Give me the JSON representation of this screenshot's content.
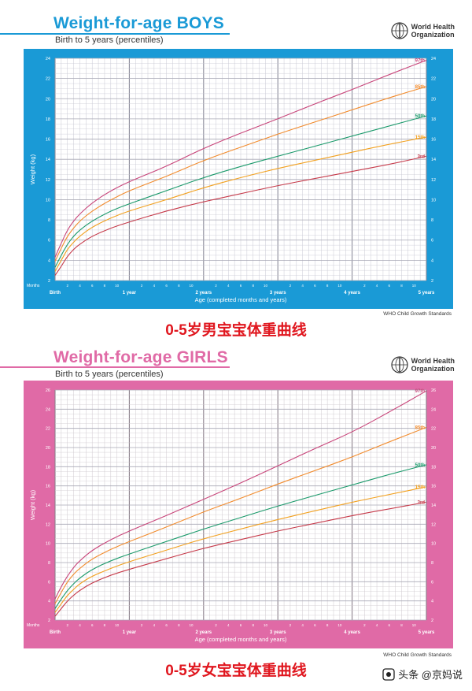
{
  "boys": {
    "title": "Weight-for-age BOYS",
    "subtitle": "Birth to 5 years (percentiles)",
    "org": [
      "World Health",
      "Organization"
    ],
    "footer": "WHO Child Growth Standards",
    "caption": "0-5岁男宝宝体重曲线"
  },
  "girls": {
    "title": "Weight-for-age GIRLS",
    "subtitle": "Birth to 5 years (percentiles)",
    "org": [
      "World Health",
      "Organization"
    ],
    "footer": "WHO Child Growth Standards",
    "caption": "0-5岁女宝宝体重曲线"
  },
  "watermark": "头条 @京妈说",
  "chart_data": [
    {
      "type": "line",
      "panel": "boys",
      "ylabel": "Weight (kg)",
      "xlabel": "Age (completed months and years)",
      "x_unit_label": "Months",
      "ylim": [
        2,
        24
      ],
      "y_ticks": [
        2,
        4,
        6,
        8,
        10,
        12,
        14,
        16,
        18,
        20,
        22,
        24
      ],
      "xlim": [
        0,
        60
      ],
      "x_year_ticks": [
        {
          "m": 0,
          "label": "Birth"
        },
        {
          "m": 12,
          "label": "1 year"
        },
        {
          "m": 24,
          "label": "2 years"
        },
        {
          "m": 36,
          "label": "3 years"
        },
        {
          "m": 48,
          "label": "4 years"
        },
        {
          "m": 60,
          "label": "5 years"
        }
      ],
      "x_month_ticks": [
        2,
        4,
        6,
        8,
        10
      ],
      "grid": true,
      "colors": {
        "background": "#1a9ad6",
        "plot": "#ffffff",
        "grid": "#c9c9d4",
        "grid_major": "#8a8a99"
      },
      "x": [
        0,
        1,
        2,
        3,
        4,
        6,
        9,
        12,
        18,
        24,
        30,
        36,
        42,
        48,
        54,
        60
      ],
      "series": [
        {
          "name": "97th",
          "color": "#c8457a",
          "values": [
            4.3,
            5.7,
            7.0,
            7.9,
            8.6,
            9.7,
            10.9,
            11.8,
            13.3,
            15.1,
            16.6,
            18.0,
            19.5,
            20.9,
            22.4,
            23.8
          ]
        },
        {
          "name": "85th",
          "color": "#f28b2c",
          "values": [
            3.9,
            5.2,
            6.4,
            7.2,
            7.9,
            8.9,
            10.0,
            10.9,
            12.3,
            13.9,
            15.2,
            16.5,
            17.7,
            18.9,
            20.1,
            21.2
          ]
        },
        {
          "name": "50th",
          "color": "#1b9a6b",
          "values": [
            3.3,
            4.5,
            5.6,
            6.4,
            7.0,
            7.9,
            8.9,
            9.6,
            10.9,
            12.2,
            13.3,
            14.3,
            15.3,
            16.3,
            17.3,
            18.3
          ]
        },
        {
          "name": "15th",
          "color": "#f2a01e",
          "values": [
            2.9,
            4.0,
            5.1,
            5.8,
            6.4,
            7.3,
            8.2,
            8.9,
            10.0,
            11.2,
            12.2,
            13.1,
            13.9,
            14.7,
            15.5,
            16.2
          ]
        },
        {
          "name": "3rd",
          "color": "#c63a4a",
          "values": [
            2.5,
            3.4,
            4.4,
            5.1,
            5.6,
            6.4,
            7.2,
            7.8,
            8.9,
            9.8,
            10.6,
            11.4,
            12.1,
            12.8,
            13.5,
            14.3
          ]
        }
      ]
    },
    {
      "type": "line",
      "panel": "girls",
      "ylabel": "Weight (kg)",
      "xlabel": "Age (completed months and years)",
      "x_unit_label": "Months",
      "ylim": [
        2,
        26
      ],
      "y_ticks": [
        2,
        4,
        6,
        8,
        10,
        12,
        14,
        16,
        18,
        20,
        22,
        24,
        26
      ],
      "xlim": [
        0,
        60
      ],
      "x_year_ticks": [
        {
          "m": 0,
          "label": "Birth"
        },
        {
          "m": 12,
          "label": "1 year"
        },
        {
          "m": 24,
          "label": "2 years"
        },
        {
          "m": 36,
          "label": "3 years"
        },
        {
          "m": 48,
          "label": "4 years"
        },
        {
          "m": 60,
          "label": "5 years"
        }
      ],
      "x_month_ticks": [
        2,
        4,
        6,
        8,
        10
      ],
      "grid": true,
      "colors": {
        "background": "#e06aa6",
        "plot": "#ffffff",
        "grid": "#cfc9cf",
        "grid_major": "#8a7f8a"
      },
      "x": [
        0,
        1,
        2,
        3,
        4,
        6,
        9,
        12,
        18,
        24,
        30,
        36,
        42,
        48,
        54,
        60
      ],
      "series": [
        {
          "name": "97th",
          "color": "#c8457a",
          "values": [
            4.2,
            5.5,
            6.6,
            7.5,
            8.2,
            9.3,
            10.4,
            11.3,
            12.9,
            14.6,
            16.3,
            18.1,
            19.9,
            21.6,
            23.7,
            25.9
          ]
        },
        {
          "name": "85th",
          "color": "#f28b2c",
          "values": [
            3.7,
            4.9,
            6.0,
            6.8,
            7.4,
            8.4,
            9.4,
            10.2,
            11.7,
            13.3,
            14.7,
            16.2,
            17.6,
            19.0,
            20.6,
            22.1
          ]
        },
        {
          "name": "50th",
          "color": "#1b9a6b",
          "values": [
            3.2,
            4.2,
            5.1,
            5.8,
            6.4,
            7.3,
            8.2,
            8.9,
            10.2,
            11.5,
            12.7,
            13.9,
            15.0,
            16.1,
            17.2,
            18.2
          ]
        },
        {
          "name": "15th",
          "color": "#f2a01e",
          "values": [
            2.8,
            3.7,
            4.6,
            5.2,
            5.8,
            6.6,
            7.4,
            8.1,
            9.3,
            10.5,
            11.5,
            12.5,
            13.4,
            14.3,
            15.1,
            15.9
          ]
        },
        {
          "name": "3rd",
          "color": "#c63a4a",
          "values": [
            2.4,
            3.2,
            4.0,
            4.6,
            5.1,
            5.9,
            6.7,
            7.3,
            8.4,
            9.5,
            10.4,
            11.3,
            12.1,
            12.9,
            13.6,
            14.3
          ]
        }
      ]
    }
  ]
}
